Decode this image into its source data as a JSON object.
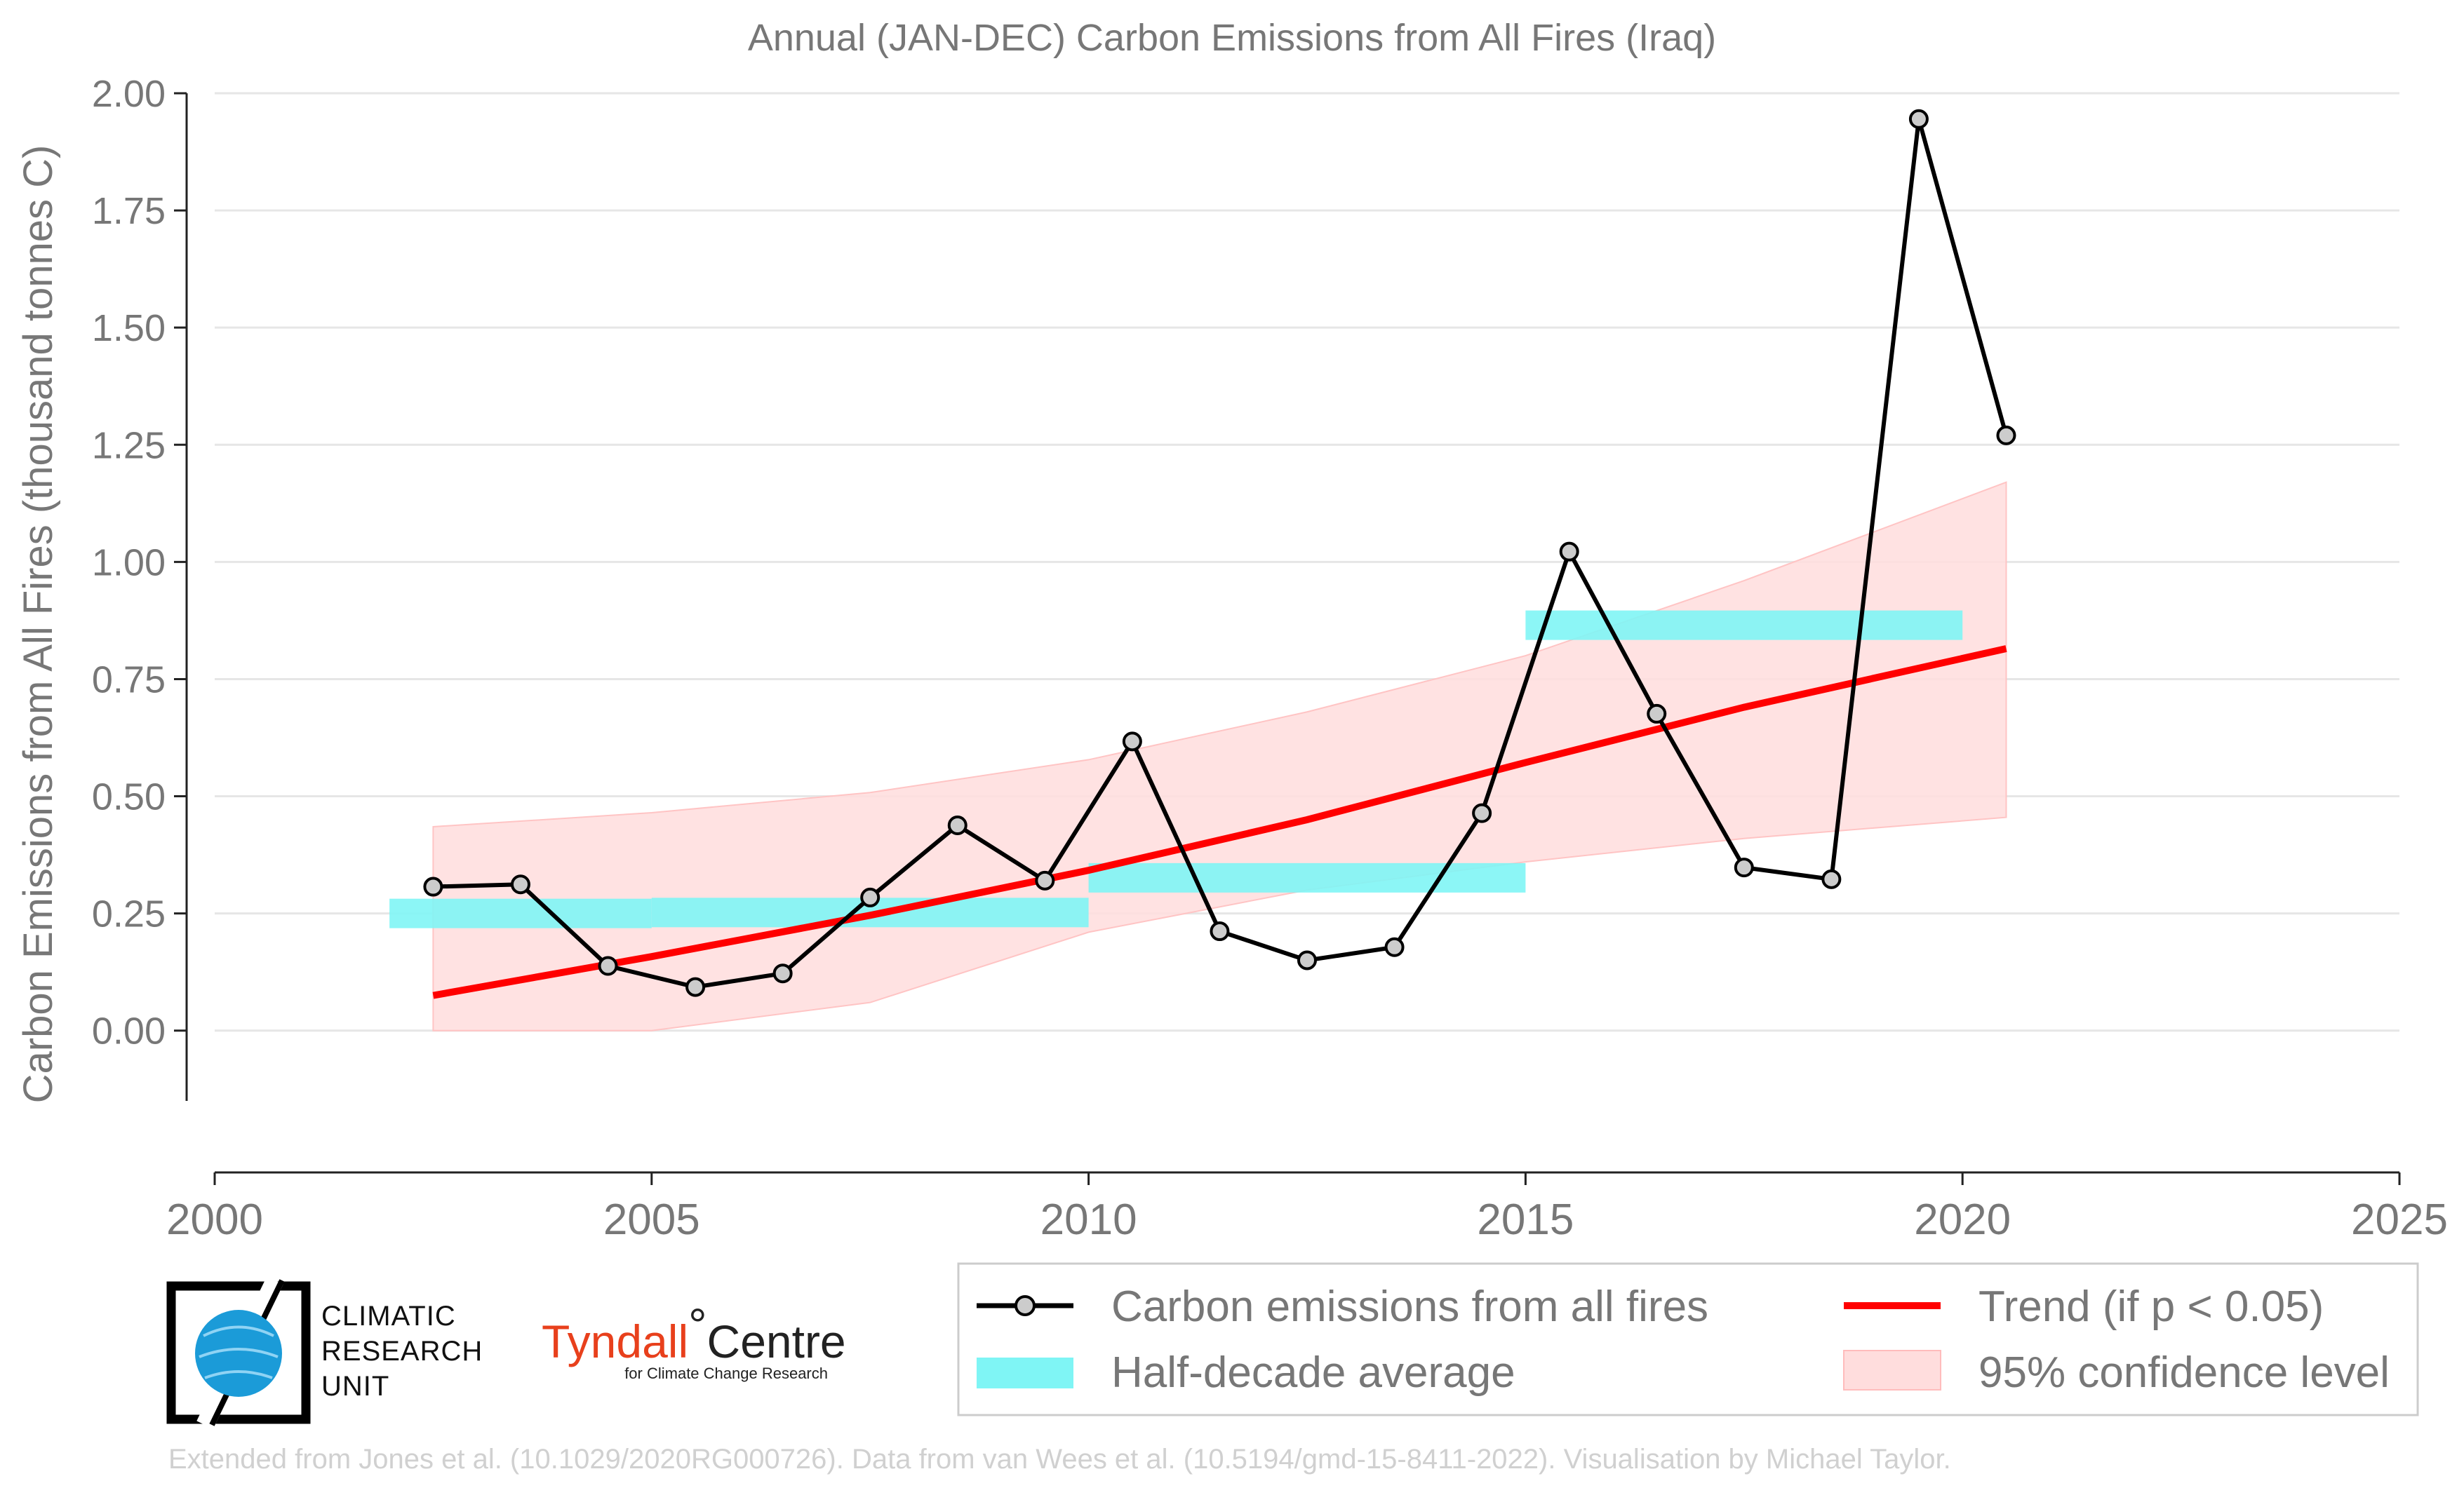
{
  "chart_data": {
    "type": "line",
    "title": "Annual (JAN-DEC) Carbon Emissions from All Fires (Iraq)",
    "xlabel": "",
    "ylabel": "Carbon Emissions from All Fires (thousand tonnes C)",
    "xlim": [
      2000,
      2025
    ],
    "ylim": [
      -0.15,
      2.0
    ],
    "x_ticks": [
      "2000",
      "2005",
      "2010",
      "2015",
      "2020",
      "2025"
    ],
    "y_ticks": [
      "0.00",
      "0.25",
      "0.50",
      "0.75",
      "1.00",
      "1.25",
      "1.50",
      "1.75",
      "2.00"
    ],
    "grid": true,
    "series": [
      {
        "name": "Carbon emissions from all fires",
        "color": "#000000",
        "marker_fill": "#cccccc",
        "x": [
          2002.5,
          2003.5,
          2004.5,
          2005.5,
          2006.5,
          2007.5,
          2008.5,
          2009.5,
          2010.5,
          2011.5,
          2012.5,
          2013.5,
          2014.5,
          2015.5,
          2016.5,
          2017.5,
          2018.5,
          2019.5,
          2020.5
        ],
        "y": [
          0.307,
          0.312,
          0.138,
          0.093,
          0.122,
          0.284,
          0.438,
          0.32,
          0.617,
          0.212,
          0.15,
          0.178,
          0.464,
          1.022,
          0.676,
          0.348,
          0.323,
          1.945,
          1.27
        ]
      }
    ],
    "half_decade_average": {
      "name": "Half-decade average",
      "color": "#7ff5f5",
      "segments": [
        {
          "x0": 2002.0,
          "x1": 2005.0,
          "y": 0.25
        },
        {
          "x0": 2005.0,
          "x1": 2010.0,
          "y": 0.252
        },
        {
          "x0": 2010.0,
          "x1": 2015.0,
          "y": 0.326
        },
        {
          "x0": 2015.0,
          "x1": 2020.0,
          "y": 0.865
        }
      ]
    },
    "trend": {
      "name": "Trend (if p < 0.05)",
      "color": "#ff0000",
      "x": [
        2002.5,
        2005.0,
        2007.5,
        2010.0,
        2012.5,
        2015.0,
        2017.5,
        2020.5
      ],
      "y": [
        0.075,
        0.158,
        0.246,
        0.342,
        0.45,
        0.572,
        0.69,
        0.815
      ]
    },
    "confidence": {
      "name": "95% confidence level",
      "color": "#ffdddd",
      "x": [
        2002.5,
        2005.0,
        2007.5,
        2010.0,
        2012.5,
        2015.0,
        2017.5,
        2020.5
      ],
      "upper": [
        0.435,
        0.465,
        0.508,
        0.578,
        0.68,
        0.8,
        0.96,
        1.17
      ],
      "lower": [
        0.0,
        0.0,
        0.06,
        0.21,
        0.3,
        0.36,
        0.41,
        0.455
      ]
    },
    "legend_position": "bottom",
    "legend": [
      {
        "label": "Carbon emissions from all fires",
        "kind": "line-marker"
      },
      {
        "label": "Trend (if p < 0.05)",
        "kind": "line-red"
      },
      {
        "label": "Half-decade average",
        "kind": "cyan-bar"
      },
      {
        "label": "95% confidence level",
        "kind": "pink-patch"
      }
    ]
  },
  "logos": {
    "cru_lines": [
      "CLIMATIC",
      "RESEARCH",
      "UNIT"
    ],
    "tyndall_main": "Tyndall",
    "tyndall_degree": "°",
    "tyndall_centre": "Centre",
    "tyndall_sub": "for Climate Change Research"
  },
  "credit": "Extended from Jones et al. (10.1029/2020RG000726). Data from van Wees et al. (10.5194/gmd-15-8411-2022). Visualisation by Michael Taylor."
}
